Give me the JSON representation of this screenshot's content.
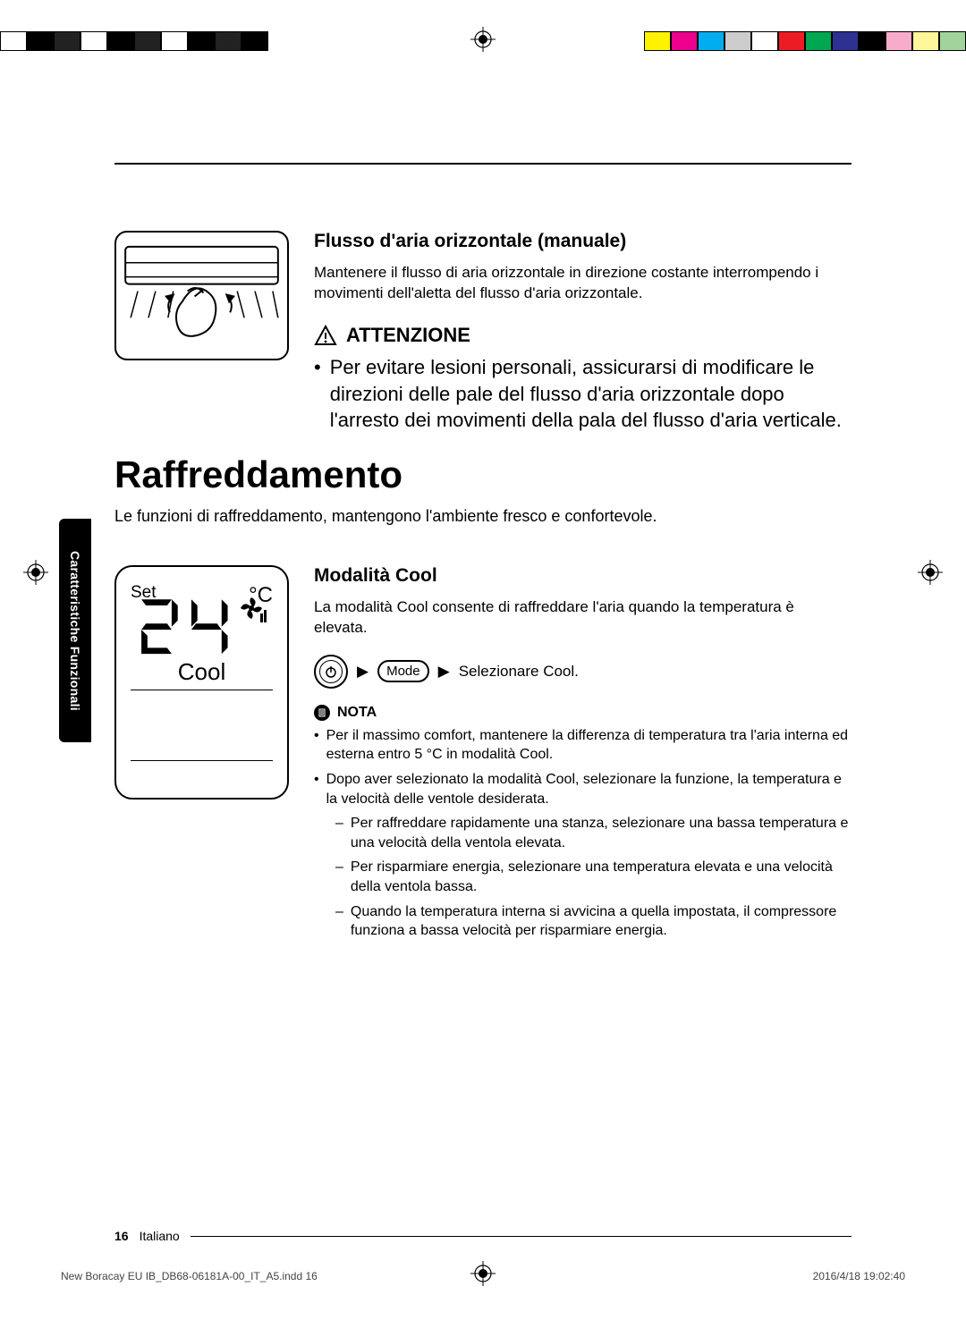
{
  "colorbar_left": [
    "#ffffff",
    "#000000",
    "#222222",
    "#ffffff",
    "#000000",
    "#222222",
    "#ffffff",
    "#000000",
    "#222222",
    "#000000"
  ],
  "colorbar_right": [
    "#fff200",
    "#ec008c",
    "#00aeef",
    "#cccccc",
    "#ffffff",
    "#ed1c24",
    "#00a651",
    "#2e3192",
    "#000000",
    "#f7adc9",
    "#fff799",
    "#a2d39c"
  ],
  "side_tab": "Caratteristiche Funzionali",
  "section1": {
    "heading": "Flusso d'aria orizzontale (manuale)",
    "body": "Mantenere il flusso di aria orizzontale in direzione costante interrompendo i movimenti dell'aletta del flusso d'aria orizzontale.",
    "warning_label": "ATTENZIONE",
    "warning_body": "Per evitare lesioni personali, assicurarsi di modificare le direzioni delle pale del flusso d'aria orizzontale dopo l'arresto dei movimenti della pala del flusso d'aria verticale."
  },
  "main_heading": "Raffreddamento",
  "main_sub": "Le funzioni di raffreddamento, mantengono l'ambiente fresco e confortevole.",
  "remote": {
    "set_label": "Set",
    "temp_value": "24",
    "temp_unit": "°C",
    "mode_label": "Cool"
  },
  "section2": {
    "heading": "Modalità Cool",
    "body": "La modalità Cool consente di raffreddare l'aria quando la temperatura è elevata.",
    "mode_btn": "Mode",
    "select_text": "Selezionare Cool.",
    "nota_label": "NOTA",
    "notes": [
      "Per il massimo comfort, mantenere la differenza di temperatura tra l'aria interna ed esterna entro 5 °C in modalità Cool.",
      "Dopo aver selezionato la modalità Cool, selezionare la funzione, la temperatura e la velocità delle ventole desiderata."
    ],
    "subnotes": [
      "Per raffreddare rapidamente una stanza, selezionare una bassa temperatura e una velocità della ventola elevata.",
      "Per risparmiare energia, selezionare una temperatura elevata e una velocità della ventola bassa.",
      "Quando la temperatura interna si avvicina a quella impostata, il compressore funziona a bassa velocità per risparmiare energia."
    ]
  },
  "footer": {
    "page_number": "16",
    "language": "Italiano",
    "file": "New Boracay EU IB_DB68-06181A-00_IT_A5.indd   16",
    "timestamp": "2016/4/18   19:02:40"
  }
}
